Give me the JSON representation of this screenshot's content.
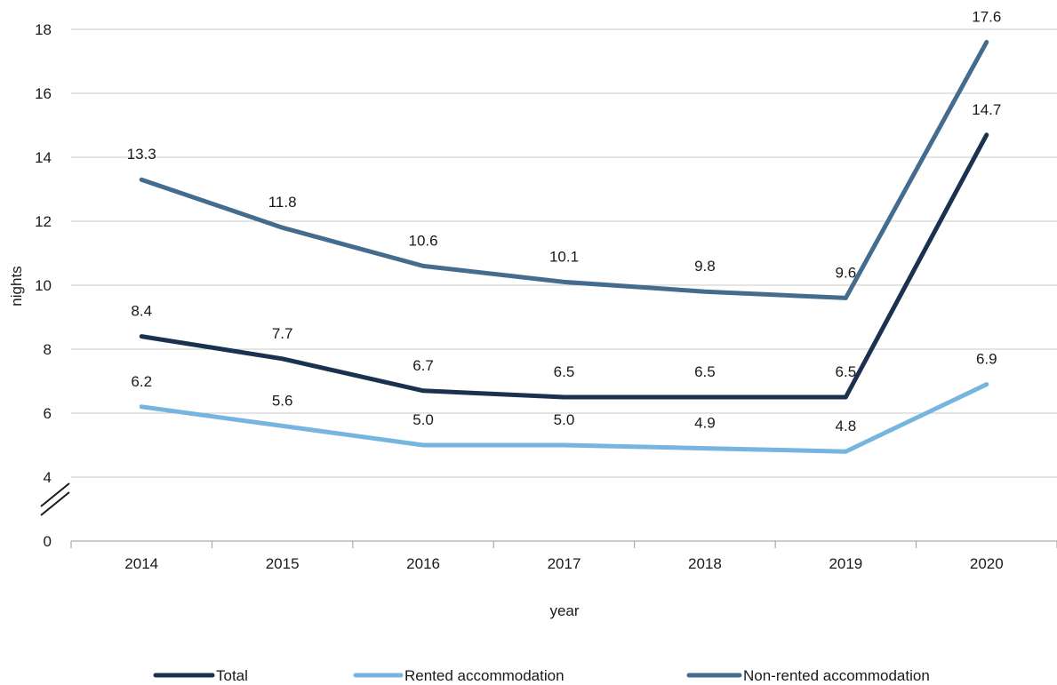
{
  "chart_data": {
    "type": "line",
    "xlabel": "year",
    "ylabel": "nights",
    "categories": [
      "2014",
      "2015",
      "2016",
      "2017",
      "2018",
      "2019",
      "2020"
    ],
    "y_ticks": [
      0,
      4,
      6,
      8,
      10,
      12,
      14,
      16,
      18
    ],
    "y_axis_break": [
      0,
      4
    ],
    "grid": true,
    "legend_position": "bottom",
    "series": [
      {
        "name": "Total",
        "color": "#1b3150",
        "values": [
          8.4,
          7.7,
          6.7,
          6.5,
          6.5,
          6.5,
          14.7
        ],
        "labels": [
          "8.4",
          "7.7",
          "6.7",
          "6.5",
          "6.5",
          "6.5",
          "14.7"
        ]
      },
      {
        "name": "Rented accommodation",
        "color": "#76b5de",
        "values": [
          6.2,
          5.6,
          5.0,
          5.0,
          4.9,
          4.8,
          6.9
        ],
        "labels": [
          "6.2",
          "5.6",
          "5.0",
          "5.0",
          "4.9",
          "4.8",
          "6.9"
        ]
      },
      {
        "name": "Non-rented accommodation",
        "color": "#436c8f",
        "values": [
          13.3,
          11.8,
          10.6,
          10.1,
          9.8,
          9.6,
          17.6
        ],
        "labels": [
          "13.3",
          "11.8",
          "10.6",
          "10.1",
          "9.8",
          "9.6",
          "17.6"
        ]
      }
    ]
  }
}
